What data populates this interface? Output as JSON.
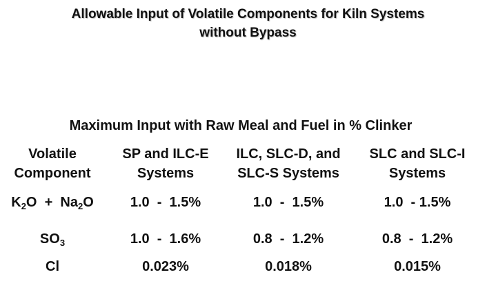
{
  "title": {
    "line1": "Allowable Input of Volatile Components for Kiln Systems",
    "line2": "without Bypass"
  },
  "subtitle": "Maximum Input with Raw Meal and Fuel in % Clinker",
  "table": {
    "headers": [
      {
        "line1": "Volatile",
        "line2": "Component"
      },
      {
        "line1": "SP and ILC-E",
        "line2": "Systems"
      },
      {
        "line1": "ILC, SLC-D, and",
        "line2": "SLC-S Systems"
      },
      {
        "line1": "SLC and SLC-I",
        "line2": "Systems"
      }
    ],
    "rows": [
      {
        "component": {
          "k": "K",
          "k_sub": "2",
          "k_rest": "O  +  Na",
          "na_sub": "2",
          "na_rest": "O"
        },
        "values": [
          "1.0  -  1.5%",
          "1.0  -  1.5%",
          "1.0  - 1.5%"
        ]
      },
      {
        "component": {
          "s": "SO",
          "s_sub": "3"
        },
        "values": [
          "1.0  -  1.6%",
          "0.8  -  1.2%",
          "0.8  -  1.2%"
        ]
      },
      {
        "component": {
          "name": "Cl"
        },
        "values": [
          "0.023%",
          "0.018%",
          "0.015%"
        ]
      }
    ]
  }
}
